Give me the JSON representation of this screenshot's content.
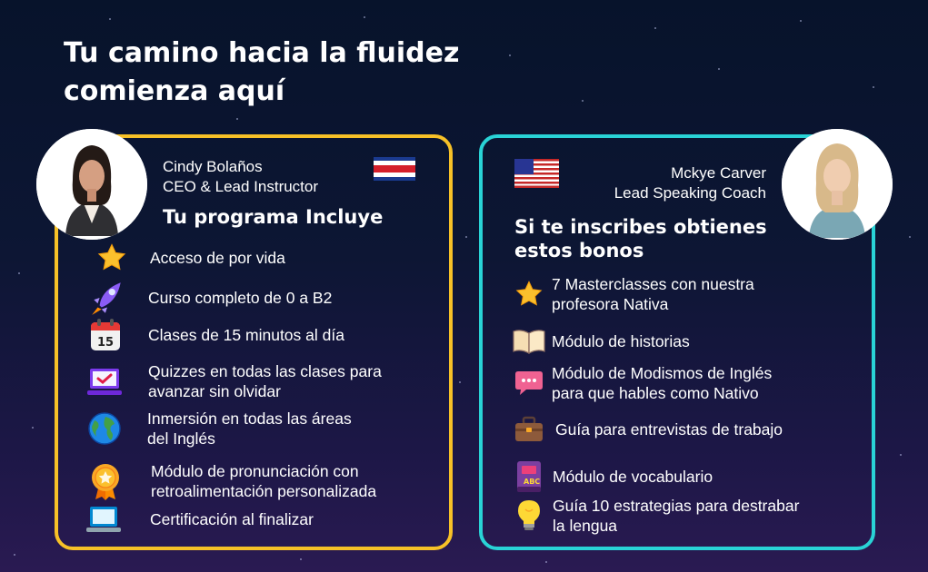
{
  "headline": {
    "line1": "Tu camino hacia la fluidez",
    "line2": "comienza aquí"
  },
  "left_card": {
    "instructor_name": "Cindy Bolaños",
    "instructor_role": "CEO & Lead Instructor",
    "title": "Tu programa Incluye",
    "accent_color": "#f7c127",
    "items": [
      {
        "icon": "star-icon",
        "text1": "Acceso de por vida",
        "text2": ""
      },
      {
        "icon": "rocket-icon",
        "text1": "Curso completo de 0 a B2",
        "text2": ""
      },
      {
        "icon": "calendar-icon",
        "text1": "Clases de 15 minutos al día",
        "text2": "",
        "icon_text": "15"
      },
      {
        "icon": "laptop-check-icon",
        "text1": "Quizzes en todas las clases para",
        "text2": "avanzar sin olvidar"
      },
      {
        "icon": "globe-icon",
        "text1": "Inmersión en todas las áreas",
        "text2": "del Inglés"
      },
      {
        "icon": "medal-icon",
        "text1": "Módulo de pronunciación con",
        "text2": "retroalimentación personalizada"
      },
      {
        "icon": "laptop-icon",
        "text1": "Certificación al finalizar",
        "text2": ""
      }
    ]
  },
  "right_card": {
    "instructor_name": "Mckye Carver",
    "instructor_role": "Lead Speaking Coach",
    "title_line1": "Si te inscribes obtienes",
    "title_line2": "estos bonos",
    "accent_color": "#29d3d6",
    "items": [
      {
        "icon": "star-icon",
        "text1": "7 Masterclasses con nuestra",
        "text2": "profesora Nativa"
      },
      {
        "icon": "open-book-icon",
        "text1": "Módulo de historias",
        "text2": ""
      },
      {
        "icon": "speech-bubble-icon",
        "text1": "Módulo de Modismos de Inglés",
        "text2": "para que hables como Nativo"
      },
      {
        "icon": "briefcase-icon",
        "text1": "Guía para entrevistas de trabajo",
        "text2": ""
      },
      {
        "icon": "vocabulary-book-icon",
        "text1": "Módulo de vocabulario",
        "text2": ""
      },
      {
        "icon": "lightbulb-icon",
        "text1": "Guía 10 estrategias para destrabar",
        "text2": "la lengua"
      }
    ]
  }
}
